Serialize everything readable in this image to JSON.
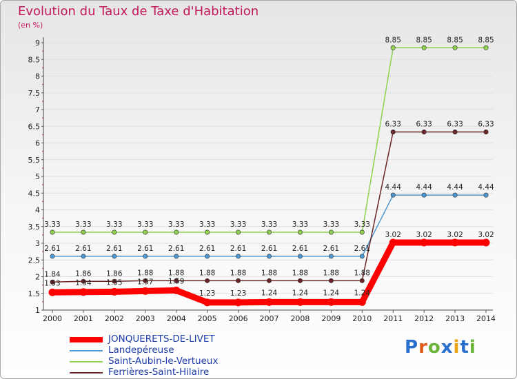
{
  "chart_data": {
    "type": "line",
    "title": "Evolution du Taux de Taxe d'Habitation",
    "ylabel": "(en %)",
    "xlabel": "",
    "ylim": [
      1,
      9
    ],
    "yticks": [
      "1",
      "1.5",
      "2",
      "2.5",
      "3",
      "3.5",
      "4",
      "4.5",
      "5",
      "5.5",
      "6",
      "6.5",
      "7",
      "7.5",
      "8",
      "8.5",
      "9"
    ],
    "categories": [
      "2000",
      "2001",
      "2002",
      "2003",
      "2004",
      "2005",
      "2006",
      "2007",
      "2008",
      "2009",
      "2010",
      "2011",
      "2012",
      "2013",
      "2014"
    ],
    "series": [
      {
        "name": "JONQUERETS-DE-LIVET",
        "color": "#ff0000",
        "values": [
          1.53,
          1.54,
          1.55,
          1.57,
          1.59,
          1.23,
          1.23,
          1.24,
          1.24,
          1.24,
          1.24,
          3.02,
          3.02,
          3.02,
          3.02
        ],
        "labels": [
          "1.53",
          "1.54",
          "1.55",
          "1.57",
          "1.59",
          "1.23",
          "1.23",
          "1.24",
          "1.24",
          "1.24",
          "1.24",
          "3.02",
          "3.02",
          "3.02",
          "3.02"
        ]
      },
      {
        "name": "Landepéreuse",
        "color": "#4e96cf",
        "values": [
          2.61,
          2.61,
          2.61,
          2.61,
          2.61,
          2.61,
          2.61,
          2.61,
          2.61,
          2.61,
          2.61,
          4.44,
          4.44,
          4.44,
          4.44
        ],
        "labels": [
          "2.61",
          "2.61",
          "2.61",
          "2.61",
          "2.61",
          "2.61",
          "2.61",
          "2.61",
          "2.61",
          "2.61",
          "2.61",
          "4.44",
          "4.44",
          "4.44",
          "4.44"
        ]
      },
      {
        "name": "Saint-Aubin-le-Vertueux",
        "color": "#8fd14f",
        "values": [
          3.33,
          3.33,
          3.33,
          3.33,
          3.33,
          3.33,
          3.33,
          3.33,
          3.33,
          3.33,
          3.33,
          8.85,
          8.85,
          8.85,
          8.85
        ],
        "labels": [
          "3.33",
          "3.33",
          "3.33",
          "3.33",
          "3.33",
          "3.33",
          "3.33",
          "3.33",
          "3.33",
          "3.33",
          "3.33",
          "8.85",
          "8.85",
          "8.85",
          "8.85"
        ]
      },
      {
        "name": "Ferrières-Saint-Hilaire",
        "color": "#6b2425",
        "values": [
          1.84,
          1.86,
          1.86,
          1.88,
          1.88,
          1.88,
          1.88,
          1.88,
          1.88,
          1.88,
          1.88,
          6.33,
          6.33,
          6.33,
          6.33
        ],
        "labels": [
          "1.84",
          "1.86",
          "1.86",
          "1.88",
          "1.88",
          "1.88",
          "1.88",
          "1.88",
          "1.88",
          "1.88",
          "1.88",
          "6.33",
          "6.33",
          "6.33",
          "6.33"
        ]
      }
    ]
  },
  "brand": {
    "logo_text": "Proxiti"
  }
}
